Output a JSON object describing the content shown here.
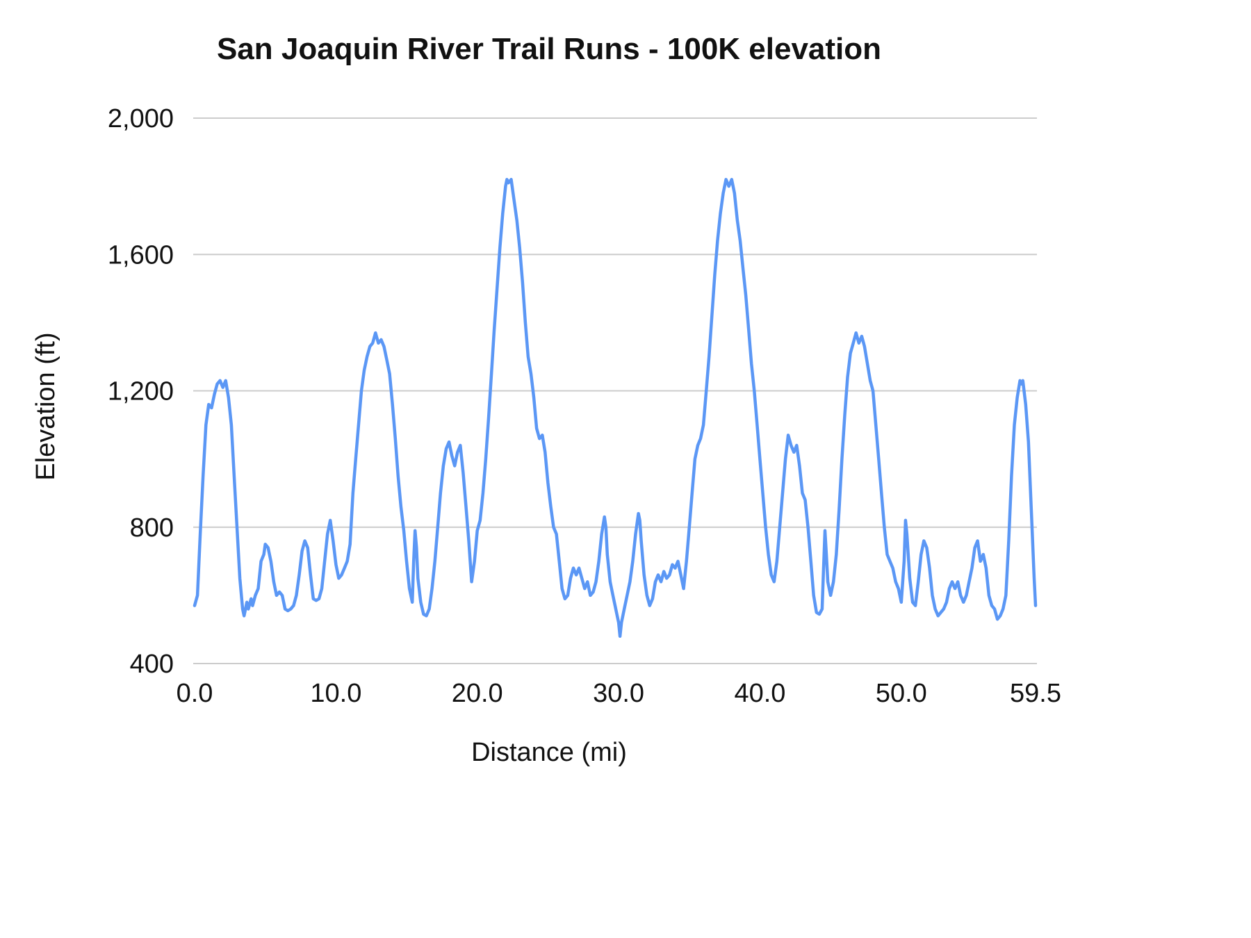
{
  "chart_data": {
    "type": "line",
    "title": "San Joaquin River Trail Runs - 100K elevation",
    "xlabel": "Distance (mi)",
    "ylabel": "Elevation (ft)",
    "xlim": [
      0,
      59.5
    ],
    "ylim": [
      400,
      2000
    ],
    "grid": "horizontal",
    "legend": "none",
    "line_color": "#5b97f5",
    "grid_color": "#cccccc",
    "x_ticks": [
      {
        "value": 0.0,
        "label": "0.0"
      },
      {
        "value": 10.0,
        "label": "10.0"
      },
      {
        "value": 20.0,
        "label": "20.0"
      },
      {
        "value": 30.0,
        "label": "30.0"
      },
      {
        "value": 40.0,
        "label": "40.0"
      },
      {
        "value": 50.0,
        "label": "50.0"
      },
      {
        "value": 59.5,
        "label": "59.5"
      }
    ],
    "y_ticks": [
      {
        "value": 400,
        "label": "400"
      },
      {
        "value": 800,
        "label": "800"
      },
      {
        "value": 1200,
        "label": "1,200"
      },
      {
        "value": 1600,
        "label": "1,600"
      },
      {
        "value": 2000,
        "label": "2,000"
      }
    ],
    "series": [
      {
        "name": "elevation",
        "points": [
          [
            0.0,
            570
          ],
          [
            0.2,
            600
          ],
          [
            0.4,
            780
          ],
          [
            0.6,
            950
          ],
          [
            0.8,
            1100
          ],
          [
            1.0,
            1160
          ],
          [
            1.2,
            1150
          ],
          [
            1.4,
            1190
          ],
          [
            1.6,
            1220
          ],
          [
            1.8,
            1230
          ],
          [
            2.0,
            1210
          ],
          [
            2.2,
            1230
          ],
          [
            2.4,
            1180
          ],
          [
            2.6,
            1100
          ],
          [
            2.8,
            950
          ],
          [
            3.0,
            800
          ],
          [
            3.2,
            650
          ],
          [
            3.4,
            560
          ],
          [
            3.5,
            540
          ],
          [
            3.7,
            580
          ],
          [
            3.8,
            560
          ],
          [
            4.0,
            590
          ],
          [
            4.1,
            570
          ],
          [
            4.3,
            600
          ],
          [
            4.5,
            620
          ],
          [
            4.7,
            700
          ],
          [
            4.9,
            720
          ],
          [
            5.0,
            750
          ],
          [
            5.2,
            740
          ],
          [
            5.4,
            700
          ],
          [
            5.6,
            640
          ],
          [
            5.8,
            600
          ],
          [
            6.0,
            610
          ],
          [
            6.2,
            600
          ],
          [
            6.4,
            560
          ],
          [
            6.6,
            555
          ],
          [
            6.8,
            560
          ],
          [
            7.0,
            570
          ],
          [
            7.2,
            600
          ],
          [
            7.4,
            660
          ],
          [
            7.6,
            730
          ],
          [
            7.8,
            760
          ],
          [
            8.0,
            740
          ],
          [
            8.2,
            660
          ],
          [
            8.4,
            590
          ],
          [
            8.6,
            585
          ],
          [
            8.8,
            590
          ],
          [
            9.0,
            620
          ],
          [
            9.2,
            700
          ],
          [
            9.4,
            780
          ],
          [
            9.6,
            820
          ],
          [
            9.8,
            760
          ],
          [
            10.0,
            690
          ],
          [
            10.2,
            650
          ],
          [
            10.4,
            660
          ],
          [
            10.6,
            680
          ],
          [
            10.8,
            700
          ],
          [
            11.0,
            750
          ],
          [
            11.2,
            900
          ],
          [
            11.4,
            1000
          ],
          [
            11.6,
            1100
          ],
          [
            11.8,
            1200
          ],
          [
            12.0,
            1260
          ],
          [
            12.2,
            1300
          ],
          [
            12.4,
            1330
          ],
          [
            12.6,
            1340
          ],
          [
            12.8,
            1370
          ],
          [
            13.0,
            1340
          ],
          [
            13.2,
            1350
          ],
          [
            13.4,
            1330
          ],
          [
            13.6,
            1290
          ],
          [
            13.8,
            1250
          ],
          [
            14.0,
            1160
          ],
          [
            14.2,
            1060
          ],
          [
            14.4,
            950
          ],
          [
            14.6,
            860
          ],
          [
            14.8,
            790
          ],
          [
            15.0,
            700
          ],
          [
            15.2,
            620
          ],
          [
            15.4,
            580
          ],
          [
            15.5,
            700
          ],
          [
            15.6,
            790
          ],
          [
            15.7,
            740
          ],
          [
            15.8,
            650
          ],
          [
            16.0,
            580
          ],
          [
            16.2,
            545
          ],
          [
            16.4,
            540
          ],
          [
            16.6,
            560
          ],
          [
            16.8,
            620
          ],
          [
            17.0,
            700
          ],
          [
            17.2,
            800
          ],
          [
            17.4,
            900
          ],
          [
            17.6,
            980
          ],
          [
            17.8,
            1030
          ],
          [
            18.0,
            1050
          ],
          [
            18.2,
            1010
          ],
          [
            18.4,
            980
          ],
          [
            18.6,
            1020
          ],
          [
            18.8,
            1040
          ],
          [
            19.0,
            960
          ],
          [
            19.2,
            860
          ],
          [
            19.4,
            760
          ],
          [
            19.6,
            640
          ],
          [
            19.8,
            700
          ],
          [
            20.0,
            790
          ],
          [
            20.2,
            820
          ],
          [
            20.4,
            900
          ],
          [
            20.6,
            1000
          ],
          [
            20.8,
            1120
          ],
          [
            21.0,
            1250
          ],
          [
            21.2,
            1380
          ],
          [
            21.4,
            1500
          ],
          [
            21.6,
            1620
          ],
          [
            21.8,
            1720
          ],
          [
            22.0,
            1800
          ],
          [
            22.1,
            1820
          ],
          [
            22.2,
            1810
          ],
          [
            22.4,
            1820
          ],
          [
            22.6,
            1760
          ],
          [
            22.8,
            1700
          ],
          [
            23.0,
            1620
          ],
          [
            23.2,
            1520
          ],
          [
            23.4,
            1400
          ],
          [
            23.6,
            1300
          ],
          [
            23.8,
            1250
          ],
          [
            24.0,
            1180
          ],
          [
            24.2,
            1090
          ],
          [
            24.4,
            1060
          ],
          [
            24.6,
            1070
          ],
          [
            24.8,
            1020
          ],
          [
            25.0,
            930
          ],
          [
            25.2,
            860
          ],
          [
            25.4,
            800
          ],
          [
            25.6,
            780
          ],
          [
            25.8,
            700
          ],
          [
            26.0,
            620
          ],
          [
            26.2,
            590
          ],
          [
            26.4,
            600
          ],
          [
            26.6,
            650
          ],
          [
            26.8,
            680
          ],
          [
            27.0,
            660
          ],
          [
            27.2,
            680
          ],
          [
            27.4,
            650
          ],
          [
            27.6,
            620
          ],
          [
            27.8,
            640
          ],
          [
            28.0,
            600
          ],
          [
            28.2,
            610
          ],
          [
            28.4,
            640
          ],
          [
            28.6,
            700
          ],
          [
            28.8,
            780
          ],
          [
            29.0,
            830
          ],
          [
            29.1,
            800
          ],
          [
            29.2,
            720
          ],
          [
            29.4,
            640
          ],
          [
            29.6,
            600
          ],
          [
            29.8,
            560
          ],
          [
            30.0,
            520
          ],
          [
            30.1,
            480
          ],
          [
            30.2,
            520
          ],
          [
            30.4,
            560
          ],
          [
            30.6,
            600
          ],
          [
            30.8,
            640
          ],
          [
            31.0,
            700
          ],
          [
            31.2,
            780
          ],
          [
            31.4,
            840
          ],
          [
            31.5,
            820
          ],
          [
            31.6,
            760
          ],
          [
            31.8,
            660
          ],
          [
            32.0,
            600
          ],
          [
            32.2,
            570
          ],
          [
            32.4,
            590
          ],
          [
            32.6,
            640
          ],
          [
            32.8,
            660
          ],
          [
            33.0,
            640
          ],
          [
            33.2,
            670
          ],
          [
            33.4,
            650
          ],
          [
            33.6,
            660
          ],
          [
            33.8,
            690
          ],
          [
            34.0,
            680
          ],
          [
            34.2,
            700
          ],
          [
            34.4,
            660
          ],
          [
            34.6,
            620
          ],
          [
            34.8,
            700
          ],
          [
            35.0,
            800
          ],
          [
            35.2,
            900
          ],
          [
            35.4,
            1000
          ],
          [
            35.6,
            1040
          ],
          [
            35.8,
            1060
          ],
          [
            36.0,
            1100
          ],
          [
            36.2,
            1200
          ],
          [
            36.4,
            1300
          ],
          [
            36.6,
            1420
          ],
          [
            36.8,
            1540
          ],
          [
            37.0,
            1640
          ],
          [
            37.2,
            1720
          ],
          [
            37.4,
            1780
          ],
          [
            37.6,
            1820
          ],
          [
            37.8,
            1800
          ],
          [
            38.0,
            1820
          ],
          [
            38.2,
            1780
          ],
          [
            38.4,
            1700
          ],
          [
            38.6,
            1640
          ],
          [
            38.8,
            1560
          ],
          [
            39.0,
            1480
          ],
          [
            39.2,
            1380
          ],
          [
            39.4,
            1280
          ],
          [
            39.6,
            1200
          ],
          [
            39.8,
            1100
          ],
          [
            40.0,
            1000
          ],
          [
            40.2,
            900
          ],
          [
            40.4,
            800
          ],
          [
            40.6,
            720
          ],
          [
            40.8,
            660
          ],
          [
            41.0,
            640
          ],
          [
            41.2,
            700
          ],
          [
            41.4,
            800
          ],
          [
            41.6,
            900
          ],
          [
            41.8,
            1000
          ],
          [
            42.0,
            1070
          ],
          [
            42.2,
            1040
          ],
          [
            42.4,
            1020
          ],
          [
            42.6,
            1040
          ],
          [
            42.8,
            980
          ],
          [
            43.0,
            900
          ],
          [
            43.2,
            880
          ],
          [
            43.4,
            800
          ],
          [
            43.6,
            700
          ],
          [
            43.8,
            600
          ],
          [
            44.0,
            550
          ],
          [
            44.2,
            545
          ],
          [
            44.4,
            560
          ],
          [
            44.5,
            680
          ],
          [
            44.6,
            790
          ],
          [
            44.7,
            720
          ],
          [
            44.8,
            640
          ],
          [
            45.0,
            600
          ],
          [
            45.2,
            640
          ],
          [
            45.4,
            720
          ],
          [
            45.6,
            850
          ],
          [
            45.8,
            1000
          ],
          [
            46.0,
            1130
          ],
          [
            46.2,
            1240
          ],
          [
            46.4,
            1310
          ],
          [
            46.6,
            1340
          ],
          [
            46.8,
            1370
          ],
          [
            47.0,
            1340
          ],
          [
            47.2,
            1360
          ],
          [
            47.4,
            1330
          ],
          [
            47.6,
            1280
          ],
          [
            47.8,
            1230
          ],
          [
            48.0,
            1200
          ],
          [
            48.2,
            1100
          ],
          [
            48.4,
            1000
          ],
          [
            48.6,
            900
          ],
          [
            48.8,
            800
          ],
          [
            49.0,
            720
          ],
          [
            49.2,
            700
          ],
          [
            49.4,
            680
          ],
          [
            49.6,
            640
          ],
          [
            49.8,
            620
          ],
          [
            50.0,
            580
          ],
          [
            50.2,
            700
          ],
          [
            50.3,
            820
          ],
          [
            50.4,
            780
          ],
          [
            50.6,
            650
          ],
          [
            50.8,
            580
          ],
          [
            51.0,
            570
          ],
          [
            51.2,
            640
          ],
          [
            51.4,
            720
          ],
          [
            51.6,
            760
          ],
          [
            51.8,
            740
          ],
          [
            52.0,
            680
          ],
          [
            52.2,
            600
          ],
          [
            52.4,
            560
          ],
          [
            52.6,
            540
          ],
          [
            52.8,
            550
          ],
          [
            53.0,
            560
          ],
          [
            53.2,
            580
          ],
          [
            53.4,
            620
          ],
          [
            53.6,
            640
          ],
          [
            53.8,
            620
          ],
          [
            54.0,
            640
          ],
          [
            54.2,
            600
          ],
          [
            54.4,
            580
          ],
          [
            54.6,
            600
          ],
          [
            54.8,
            640
          ],
          [
            55.0,
            680
          ],
          [
            55.2,
            740
          ],
          [
            55.4,
            760
          ],
          [
            55.6,
            700
          ],
          [
            55.8,
            720
          ],
          [
            56.0,
            680
          ],
          [
            56.2,
            600
          ],
          [
            56.4,
            570
          ],
          [
            56.6,
            560
          ],
          [
            56.8,
            530
          ],
          [
            57.0,
            540
          ],
          [
            57.2,
            560
          ],
          [
            57.4,
            600
          ],
          [
            57.6,
            760
          ],
          [
            57.8,
            950
          ],
          [
            58.0,
            1100
          ],
          [
            58.2,
            1180
          ],
          [
            58.4,
            1230
          ],
          [
            58.5,
            1220
          ],
          [
            58.6,
            1230
          ],
          [
            58.8,
            1160
          ],
          [
            59.0,
            1050
          ],
          [
            59.2,
            850
          ],
          [
            59.4,
            650
          ],
          [
            59.5,
            570
          ]
        ]
      }
    ]
  }
}
